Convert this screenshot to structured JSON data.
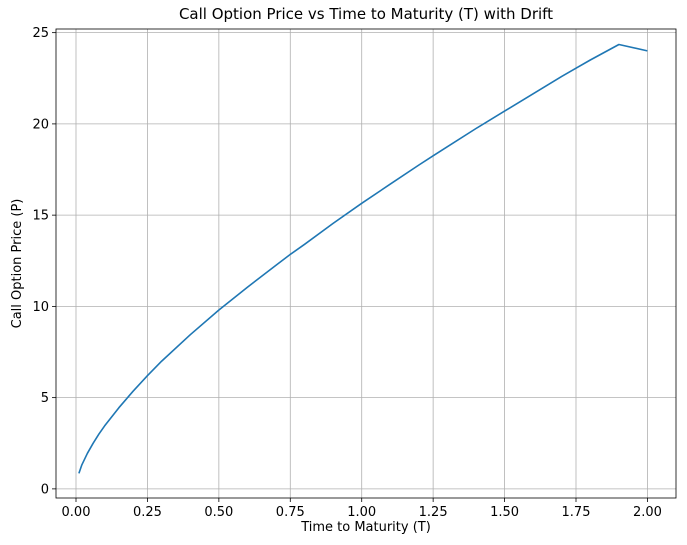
{
  "chart_data": {
    "type": "line",
    "title": "Call Option Price vs Time to Maturity (T) with Drift",
    "xlabel": "Time to Maturity (T)",
    "ylabel": "Call Option Price (P)",
    "xlim": [
      -0.07,
      2.1
    ],
    "ylim": [
      -0.5,
      25.2
    ],
    "x_ticks": [
      0.0,
      0.25,
      0.5,
      0.75,
      1.0,
      1.25,
      1.5,
      1.75,
      2.0
    ],
    "x_tick_labels": [
      "0.00",
      "0.25",
      "0.50",
      "0.75",
      "1.00",
      "1.25",
      "1.50",
      "1.75",
      "2.00"
    ],
    "y_ticks": [
      0,
      5,
      10,
      15,
      20,
      25
    ],
    "y_tick_labels": [
      "0",
      "5",
      "10",
      "15",
      "20",
      "25"
    ],
    "grid": true,
    "line_color": "#1f77b4",
    "series": [
      {
        "x": [
          0.01,
          0.02,
          0.04,
          0.06,
          0.08,
          0.1,
          0.15,
          0.2,
          0.25,
          0.3,
          0.4,
          0.5,
          0.6,
          0.7,
          0.75,
          0.8,
          0.9,
          1.0,
          1.1,
          1.2,
          1.25,
          1.3,
          1.4,
          1.5,
          1.6,
          1.7,
          1.75,
          1.8,
          1.9,
          2.0
        ],
        "y": [
          0.85,
          1.3,
          1.95,
          2.5,
          3.0,
          3.45,
          4.45,
          5.35,
          6.2,
          7.0,
          8.45,
          9.8,
          11.05,
          12.25,
          12.85,
          13.4,
          14.55,
          15.65,
          16.7,
          17.75,
          18.25,
          18.75,
          19.75,
          20.7,
          21.65,
          22.6,
          23.05,
          23.5,
          24.35,
          24.0
        ]
      }
    ]
  }
}
